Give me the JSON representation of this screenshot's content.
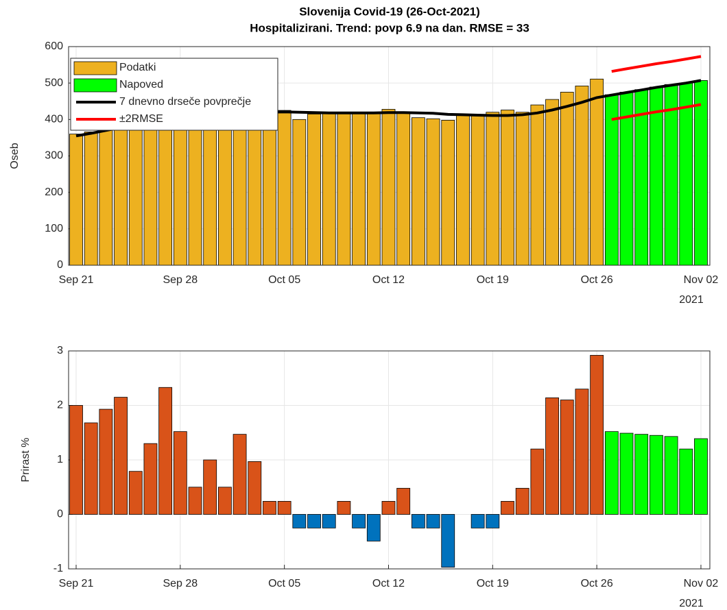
{
  "chart_data": [
    {
      "type": "bar",
      "title": "Slovenija Covid-19 (26-Oct-2021)",
      "subtitle": "Hospitalizirani. Trend: povp 6.9 na dan. RMSE = 33",
      "ylabel": "Oseb",
      "categories": [
        "Sep 21",
        null,
        null,
        null,
        null,
        null,
        null,
        "Sep 28",
        null,
        null,
        null,
        null,
        null,
        null,
        "Oct 05",
        null,
        null,
        null,
        null,
        null,
        null,
        "Oct 12",
        null,
        null,
        null,
        null,
        null,
        null,
        "Oct 19",
        null,
        null,
        null,
        null,
        null,
        null,
        "Oct 26",
        null,
        null,
        null,
        null,
        null,
        null,
        "Nov 02"
      ],
      "year_label": "2021",
      "ylim": [
        0,
        600
      ],
      "yticks": [
        0,
        100,
        200,
        300,
        400,
        500,
        600
      ],
      "grid": true,
      "legend": "northwest",
      "series": [
        {
          "name": "Podatki",
          "type": "bar",
          "color": "#edb120",
          "values": [
            360,
            366,
            372,
            378,
            384,
            389,
            394,
            400,
            404,
            408,
            411,
            414,
            417,
            420,
            425,
            400,
            415,
            418,
            420,
            418,
            420,
            428,
            418,
            405,
            402,
            398,
            412,
            414,
            420,
            426,
            420,
            440,
            455,
            475,
            492,
            511,
            null,
            null,
            null,
            null,
            null,
            null,
            null
          ]
        },
        {
          "name": "Napoved",
          "type": "bar",
          "color": "#00ff00",
          "values": [
            null,
            null,
            null,
            null,
            null,
            null,
            null,
            null,
            null,
            null,
            null,
            null,
            null,
            null,
            null,
            null,
            null,
            null,
            null,
            null,
            null,
            null,
            null,
            null,
            null,
            null,
            null,
            null,
            null,
            null,
            null,
            null,
            null,
            null,
            null,
            null,
            468,
            475,
            482,
            489,
            496,
            500,
            507
          ]
        },
        {
          "name": "7 dnevno drseče povprečje",
          "type": "line",
          "color": "#000000",
          "values": [
            355,
            362,
            370,
            378,
            385,
            392,
            398,
            403,
            407,
            410,
            413,
            416,
            418,
            420,
            421,
            420,
            419,
            418,
            418,
            418,
            418,
            419,
            419,
            418,
            417,
            414,
            413,
            412,
            411,
            411,
            413,
            418,
            426,
            436,
            447,
            460,
            467,
            474,
            481,
            488,
            494,
            500,
            507
          ]
        },
        {
          "name": "±2RMSE",
          "type": "line",
          "color": "#ff0000",
          "values": [
            null,
            null,
            null,
            null,
            null,
            null,
            null,
            null,
            null,
            null,
            null,
            null,
            null,
            null,
            null,
            null,
            null,
            null,
            null,
            null,
            null,
            null,
            null,
            null,
            null,
            null,
            null,
            null,
            null,
            null,
            null,
            null,
            null,
            null,
            null,
            null,
            532,
            539,
            546,
            553,
            559,
            566,
            573
          ],
          "lower": [
            null,
            null,
            null,
            null,
            null,
            null,
            null,
            null,
            null,
            null,
            null,
            null,
            null,
            null,
            null,
            null,
            null,
            null,
            null,
            null,
            null,
            null,
            null,
            null,
            null,
            null,
            null,
            null,
            null,
            null,
            null,
            null,
            null,
            null,
            null,
            null,
            400,
            407,
            414,
            421,
            427,
            434,
            441
          ]
        }
      ]
    },
    {
      "type": "bar",
      "ylabel": "Prirast %",
      "categories": [
        "Sep 21",
        null,
        null,
        null,
        null,
        null,
        null,
        "Sep 28",
        null,
        null,
        null,
        null,
        null,
        null,
        "Oct 05",
        null,
        null,
        null,
        null,
        null,
        null,
        "Oct 12",
        null,
        null,
        null,
        null,
        null,
        null,
        "Oct 19",
        null,
        null,
        null,
        null,
        null,
        null,
        "Oct 26",
        null,
        null,
        null,
        null,
        null,
        null,
        "Nov 02"
      ],
      "year_label": "2021",
      "ylim": [
        -1,
        3
      ],
      "yticks": [
        -1,
        0,
        1,
        2,
        3
      ],
      "grid": true,
      "series": [
        {
          "type": "bar",
          "color": "#d95319",
          "negative_color": "#0072bd",
          "values": [
            2,
            1.68,
            1.93,
            2.15,
            0.79,
            1.3,
            2.33,
            1.52,
            0.5,
            1,
            0.5,
            1.47,
            0.97,
            0.24,
            0.24,
            -0.25,
            -0.25,
            -0.25,
            0.24,
            -0.25,
            -0.49,
            0.24,
            0.48,
            -0.25,
            -0.25,
            -0.97,
            0,
            -0.25,
            -0.25,
            0.24,
            0.48,
            1.2,
            2.14,
            2.1,
            2.3,
            2.92,
            null,
            null,
            null,
            null,
            null,
            null,
            null
          ]
        },
        {
          "type": "bar",
          "color": "#00ff00",
          "values": [
            null,
            null,
            null,
            null,
            null,
            null,
            null,
            null,
            null,
            null,
            null,
            null,
            null,
            null,
            null,
            null,
            null,
            null,
            null,
            null,
            null,
            null,
            null,
            null,
            null,
            null,
            null,
            null,
            null,
            null,
            null,
            null,
            null,
            null,
            null,
            null,
            1.52,
            1.49,
            1.47,
            1.45,
            1.43,
            1.2,
            1.39
          ]
        }
      ]
    }
  ]
}
